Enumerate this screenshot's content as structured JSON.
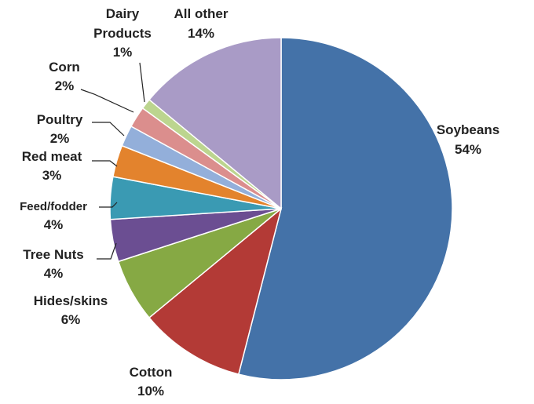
{
  "chart_data": {
    "type": "pie",
    "title": "",
    "start_angle_deg": 0,
    "direction": "clockwise",
    "slices": [
      {
        "label": "Soybeans",
        "value": 54,
        "display": "54%",
        "color": "#4472A8"
      },
      {
        "label": "Cotton",
        "value": 10,
        "display": "10%",
        "color": "#B33A36"
      },
      {
        "label": "Hides/skins",
        "value": 6,
        "display": "6%",
        "color": "#86A944"
      },
      {
        "label": "Tree Nuts",
        "value": 4,
        "display": "4%",
        "color": "#6B4E92"
      },
      {
        "label": "Feed/fodder",
        "value": 4,
        "display": "4%",
        "color": "#3A9AB3"
      },
      {
        "label": "Red meat",
        "value": 3,
        "display": "3%",
        "color": "#E3832D"
      },
      {
        "label": "Poultry",
        "value": 2,
        "display": "2%",
        "color": "#93AFDA"
      },
      {
        "label": "Corn",
        "value": 2,
        "display": "2%",
        "color": "#DB8E8D"
      },
      {
        "label": "Dairy Products",
        "value": 1,
        "display": "1%",
        "color": "#BCD58F"
      },
      {
        "label": "All other",
        "value": 14,
        "display": "14%",
        "color": "#A99BC6"
      }
    ]
  }
}
